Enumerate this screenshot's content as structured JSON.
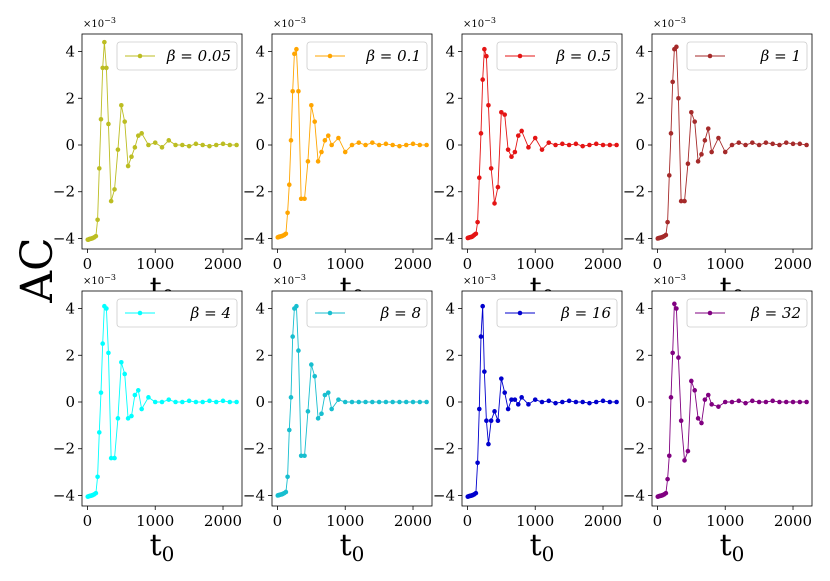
{
  "figure": {
    "ylabel": "AC",
    "xlabel": "t",
    "xlabel_sub": "0",
    "scale_base": "×10",
    "scale_exp": "−3"
  },
  "chart_data": {
    "type": "line",
    "layout": "grid 2x4",
    "shared_x": [
      5,
      15,
      25,
      35,
      50,
      65,
      80,
      100,
      125,
      150,
      175,
      200,
      225,
      250,
      280,
      310,
      350,
      400,
      450,
      500,
      550,
      600,
      650,
      700,
      750,
      800,
      900,
      1000,
      1100,
      1200,
      1300,
      1400,
      1500,
      1600,
      1700,
      1800,
      1900,
      2000,
      2100,
      2200
    ],
    "xlim": [
      -80,
      2280
    ],
    "xticks": [
      0,
      1000,
      2000
    ],
    "ylim": [
      -4.45,
      4.75
    ],
    "yticks": [
      -4,
      -2,
      0,
      2,
      4
    ],
    "ytick_labels": [
      "−4",
      "−2",
      "0",
      "2",
      "4"
    ],
    "y_units": "×10^-3",
    "legend_position": "upper right",
    "panels": [
      {
        "legend": "β = 0.05",
        "color": "#bcbd22",
        "values": [
          -4.05,
          -4.05,
          -4.03,
          -4.02,
          -4.01,
          -4.0,
          -3.98,
          -3.95,
          -3.9,
          -3.2,
          -1.0,
          1.1,
          3.3,
          4.4,
          3.3,
          0.9,
          -2.4,
          -1.9,
          -0.2,
          1.7,
          1.0,
          -0.9,
          -0.5,
          -0.1,
          0.4,
          0.5,
          0.0,
          0.1,
          -0.1,
          0.2,
          0.0,
          0.0,
          -0.05,
          0.05,
          0.0,
          -0.05,
          0.0,
          0.05,
          0.0,
          0.0
        ]
      },
      {
        "legend": "β = 0.1",
        "color": "#ffa500",
        "values": [
          -3.95,
          -3.94,
          -3.93,
          -3.92,
          -3.91,
          -3.9,
          -3.88,
          -3.85,
          -3.8,
          -2.9,
          -1.7,
          0.2,
          2.3,
          3.9,
          4.1,
          2.3,
          -2.3,
          -2.3,
          -0.7,
          1.7,
          1.0,
          -0.7,
          -0.3,
          0.2,
          0.4,
          0.0,
          0.3,
          -0.3,
          0.0,
          0.1,
          0.0,
          0.1,
          0.0,
          0.05,
          0.0,
          -0.05,
          0.0,
          0.05,
          0.0,
          0.0
        ]
      },
      {
        "legend": "β = 0.5",
        "color": "#e41414",
        "values": [
          -3.98,
          -3.97,
          -3.96,
          -3.95,
          -3.94,
          -3.93,
          -3.9,
          -3.85,
          -3.8,
          -3.3,
          -1.4,
          0.5,
          2.8,
          4.1,
          3.8,
          1.7,
          -1.0,
          -2.5,
          -1.8,
          1.4,
          1.3,
          -0.2,
          -0.5,
          -0.3,
          0.4,
          0.6,
          -0.1,
          0.3,
          -0.2,
          0.1,
          0.0,
          0.05,
          0.0,
          0.05,
          -0.05,
          0.0,
          0.05,
          0.0,
          0.0,
          0.0
        ]
      },
      {
        "legend": "β = 1",
        "color": "#a52a2a",
        "values": [
          -4.0,
          -3.99,
          -3.98,
          -3.97,
          -3.96,
          -3.95,
          -3.93,
          -3.9,
          -3.85,
          -3.3,
          -1.3,
          0.5,
          2.7,
          4.1,
          4.2,
          2.0,
          -2.4,
          -2.4,
          -0.8,
          1.4,
          1.0,
          -0.7,
          -0.4,
          0.2,
          0.7,
          -0.3,
          0.3,
          -0.3,
          0.0,
          0.1,
          0.0,
          0.1,
          0.0,
          0.1,
          0.05,
          0.0,
          0.1,
          0.05,
          0.05,
          0.0
        ]
      },
      {
        "legend": "β = 4",
        "color": "#00ffff",
        "values": [
          -4.05,
          -4.04,
          -4.03,
          -4.02,
          -4.01,
          -4.0,
          -3.98,
          -3.95,
          -3.9,
          -3.2,
          -1.3,
          0.4,
          2.5,
          4.1,
          4.0,
          2.1,
          -2.4,
          -2.4,
          -0.7,
          1.7,
          1.2,
          -0.7,
          -0.6,
          0.3,
          0.5,
          -0.3,
          0.2,
          0.0,
          0.0,
          0.1,
          0.0,
          0.0,
          0.05,
          0.0,
          0.0,
          0.05,
          0.0,
          0.05,
          0.0,
          0.0
        ]
      },
      {
        "legend": "β = 8",
        "color": "#17becf",
        "values": [
          -4.0,
          -3.99,
          -3.98,
          -3.97,
          -3.96,
          -3.95,
          -3.93,
          -3.9,
          -3.85,
          -3.2,
          -1.2,
          0.2,
          2.8,
          4.0,
          4.1,
          2.2,
          -2.3,
          -2.3,
          -0.4,
          1.6,
          1.1,
          -0.7,
          -0.5,
          0.3,
          0.4,
          -0.3,
          0.1,
          0.0,
          0.0,
          0.0,
          0.0,
          0.0,
          0.0,
          0.0,
          0.0,
          0.0,
          0.0,
          0.0,
          0.0,
          0.0
        ]
      },
      {
        "legend": "β = 16",
        "color": "#0000cd",
        "values": [
          -4.05,
          -4.04,
          -4.03,
          -4.02,
          -4.01,
          -4.0,
          -3.98,
          -3.95,
          -3.9,
          -2.6,
          -0.3,
          2.8,
          4.1,
          1.3,
          -0.8,
          -1.8,
          -0.8,
          -0.4,
          -0.8,
          1.0,
          0.4,
          -0.3,
          0.1,
          0.1,
          -0.1,
          0.2,
          -0.1,
          0.1,
          0.0,
          0.05,
          -0.05,
          0.0,
          0.05,
          0.0,
          0.0,
          -0.05,
          0.0,
          0.05,
          0.0,
          0.0
        ]
      },
      {
        "legend": "β = 32",
        "color": "#800080",
        "values": [
          -4.05,
          -4.04,
          -4.03,
          -4.02,
          -4.01,
          -4.0,
          -3.98,
          -3.95,
          -3.9,
          -3.3,
          -2.3,
          0.2,
          2.1,
          4.2,
          4.0,
          1.9,
          -0.8,
          -2.5,
          -2.1,
          0.9,
          0.5,
          -0.7,
          -0.9,
          0.1,
          0.3,
          -0.1,
          -0.2,
          0.0,
          0.0,
          0.05,
          -0.05,
          0.05,
          0.0,
          0.0,
          0.05,
          0.0,
          0.0,
          0.0,
          0.0,
          0.0
        ]
      }
    ]
  }
}
